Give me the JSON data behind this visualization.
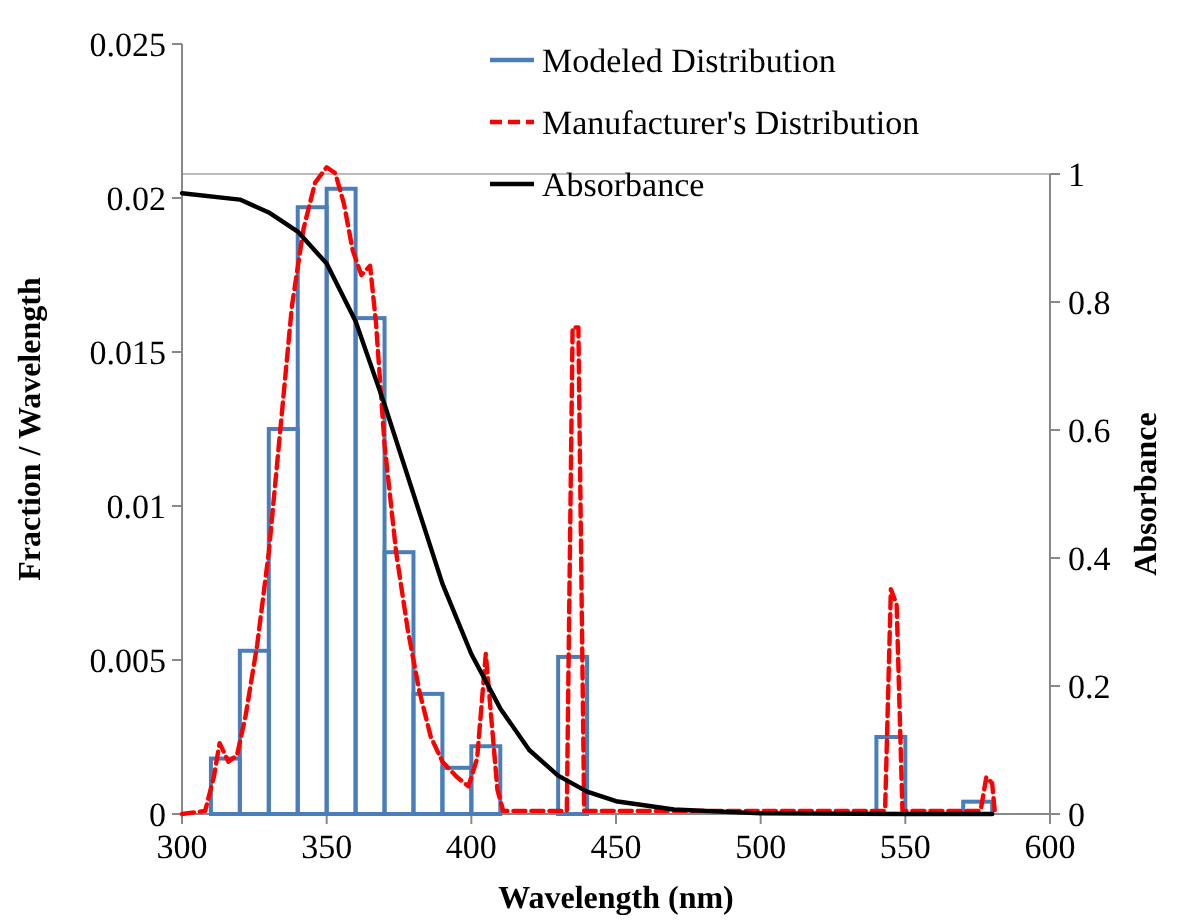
{
  "chart_data": {
    "type": "histogram",
    "xlabel": "Wavelength (nm)",
    "ylabel": "Fraction / Wavelength",
    "y2label": "Absorbance",
    "xlim": [
      300,
      600
    ],
    "xticks": [
      300,
      350,
      400,
      450,
      500,
      550,
      600
    ],
    "ylim": [
      0,
      0.025
    ],
    "yticks": [
      0,
      0.005,
      0.01,
      0.015,
      0.02,
      0.025
    ],
    "y2lim": [
      0,
      1
    ],
    "y2ticks": [
      0,
      0.2,
      0.4,
      0.6,
      0.8,
      1
    ],
    "legend": "top right",
    "marker": "none",
    "series": [
      {
        "name": "Modeled Distribution",
        "color": "#4a7ebb",
        "bins": [
          310,
          320,
          330,
          340,
          350,
          360,
          370,
          380,
          390,
          400,
          410,
          420,
          430,
          440,
          450,
          460,
          470,
          480,
          490,
          500,
          510,
          520,
          530,
          540,
          550,
          560,
          570,
          580
        ],
        "values": [
          0.0018,
          0.0053,
          0.0125,
          0.0197,
          0.0203,
          0.0161,
          0.0085,
          0.0039,
          0.0015,
          0.0022,
          0,
          0,
          0.0051,
          0,
          0,
          0,
          0,
          0,
          0,
          0,
          0,
          0,
          0,
          0.0025,
          0,
          0,
          0.0004
        ]
      },
      {
        "type": "line",
        "name": "Manufacturer's Distribution",
        "color": "#ff0000",
        "line_style": "dashed",
        "x": [
          300,
          308,
          311,
          313,
          316,
          319,
          322,
          326,
          330,
          334,
          338,
          342,
          346,
          350,
          353,
          356,
          359,
          362,
          365,
          367,
          370,
          374,
          378,
          382,
          386,
          390,
          395,
          399,
          402,
          405,
          407,
          409,
          411,
          433,
          435,
          437,
          439,
          543,
          545,
          547,
          549,
          576,
          578,
          580,
          581
        ],
        "values": [
          0,
          0.0001,
          0.0012,
          0.0023,
          0.0017,
          0.0019,
          0.0032,
          0.0055,
          0.0085,
          0.0125,
          0.0165,
          0.019,
          0.0205,
          0.021,
          0.0208,
          0.0198,
          0.0183,
          0.0175,
          0.0178,
          0.016,
          0.012,
          0.0085,
          0.006,
          0.004,
          0.0025,
          0.0017,
          0.0012,
          0.0009,
          0.0018,
          0.0052,
          0.003,
          0.0008,
          0.0001,
          0.0001,
          0.0158,
          0.0158,
          0.0001,
          0.0001,
          0.0073,
          0.0068,
          0.0001,
          0.0001,
          0.0012,
          0.001,
          0
        ]
      },
      {
        "type": "line",
        "name": "Absorbance",
        "color": "#000000",
        "axis": "y2",
        "line_style": "solid",
        "x": [
          300,
          320,
          330,
          340,
          350,
          360,
          370,
          380,
          390,
          400,
          410,
          420,
          430,
          440,
          450,
          470,
          500,
          550,
          580
        ],
        "values": [
          0.97,
          0.96,
          0.94,
          0.91,
          0.86,
          0.77,
          0.64,
          0.5,
          0.36,
          0.25,
          0.165,
          0.1,
          0.06,
          0.035,
          0.02,
          0.007,
          0.001,
          0,
          0
        ]
      }
    ]
  }
}
